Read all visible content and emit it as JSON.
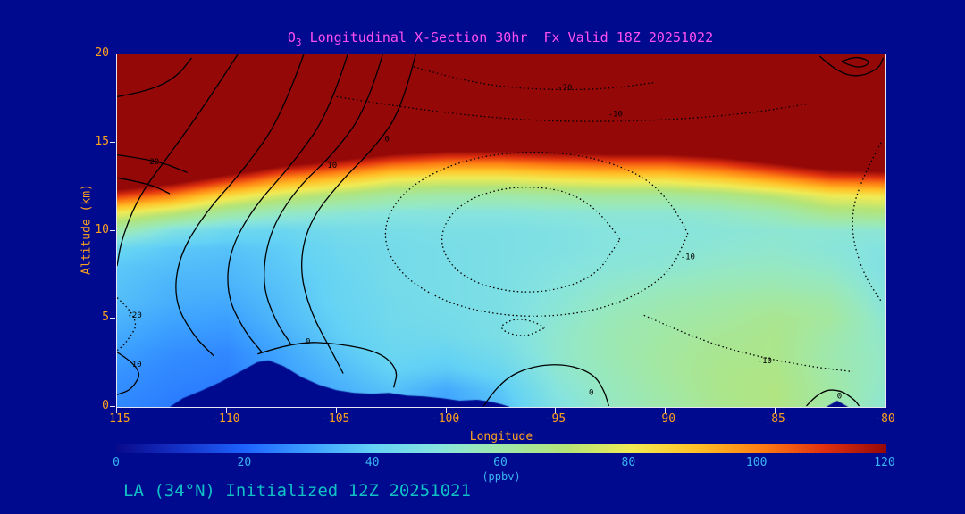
{
  "colors": {
    "background": "#000a8e",
    "title_text": "#ff4ff0",
    "axis_text": "#ffa21e",
    "frame": "#e6e6f0",
    "colorbar_text": "#3ab4f2",
    "footer_text": "#0fc0c5",
    "contour_line": "#000000"
  },
  "title": {
    "prefix": "O",
    "sub": "3",
    "rest": " Longitudinal X-Section 30hr  Fx Valid 18Z 20251022"
  },
  "footer": {
    "text": "LA (34°N) Initialized 12Z 20251021"
  },
  "chart_data": {
    "type": "heatmap",
    "title": "O3 Longitudinal X-Section 30hr  Fx Valid 18Z 20251022",
    "xlabel": "Longitude",
    "ylabel": "Altitude (km)",
    "units": "ppbv",
    "x_ticks": [
      -115,
      -110,
      -105,
      -100,
      -95,
      -90,
      -85,
      -80
    ],
    "y_ticks": [
      0,
      5,
      10,
      15,
      20
    ],
    "xlim": [
      -115,
      -80
    ],
    "ylim": [
      0,
      20
    ],
    "colorbar": {
      "units": "(ppbv)",
      "ticks": [
        0,
        20,
        40,
        60,
        80,
        100,
        120
      ],
      "range": [
        0,
        120
      ]
    },
    "grid": {
      "lons": [
        -115,
        -112.5,
        -110,
        -107.5,
        -105,
        -102.5,
        -100,
        -97.5,
        -95,
        -92.5,
        -90,
        -87.5,
        -85,
        -82.5,
        -80
      ],
      "alts": [
        0,
        1,
        2,
        3,
        4,
        5,
        6,
        7,
        8,
        9,
        10,
        11,
        12,
        13,
        14,
        15,
        16,
        17,
        18,
        19,
        20
      ],
      "values": [
        [
          26,
          24,
          22,
          28,
          32,
          36,
          30,
          36,
          48,
          55,
          60,
          65,
          68,
          60,
          52
        ],
        [
          27,
          25,
          24,
          28,
          33,
          37,
          32,
          38,
          50,
          56,
          61,
          66,
          68,
          61,
          53
        ],
        [
          28,
          26,
          25,
          30,
          35,
          40,
          38,
          42,
          52,
          57,
          62,
          66,
          67,
          60,
          54
        ],
        [
          30,
          27,
          26,
          31,
          37,
          42,
          41,
          45,
          53,
          58,
          62,
          65,
          66,
          59,
          54
        ],
        [
          32,
          29,
          28,
          33,
          39,
          43,
          44,
          47,
          53,
          58,
          61,
          64,
          66,
          60,
          53
        ],
        [
          34,
          31,
          30,
          35,
          40,
          44,
          45,
          47,
          52,
          57,
          60,
          62,
          65,
          62,
          52
        ],
        [
          36,
          33,
          32,
          36,
          41,
          44,
          46,
          47,
          51,
          55,
          58,
          60,
          62,
          60,
          50
        ],
        [
          37,
          34,
          34,
          37,
          41,
          45,
          46,
          47,
          50,
          53,
          55,
          57,
          58,
          56,
          49
        ],
        [
          38,
          36,
          35,
          38,
          42,
          45,
          46,
          47,
          49,
          51,
          52,
          54,
          55,
          53,
          48
        ],
        [
          42,
          38,
          37,
          39,
          43,
          45,
          46,
          47,
          48,
          50,
          51,
          52,
          53,
          51,
          49
        ],
        [
          60,
          48,
          43,
          42,
          45,
          46,
          47,
          47,
          48,
          50,
          50,
          51,
          52,
          52,
          52
        ],
        [
          80,
          72,
          62,
          55,
          52,
          50,
          50,
          50,
          51,
          52,
          52,
          54,
          58,
          66,
          68
        ],
        [
          110,
          100,
          85,
          75,
          68,
          62,
          60,
          60,
          62,
          63,
          63,
          66,
          72,
          80,
          82
        ],
        [
          140,
          130,
          115,
          100,
          92,
          83,
          80,
          80,
          83,
          85,
          85,
          90,
          98,
          108,
          110
        ],
        [
          175,
          160,
          145,
          130,
          120,
          110,
          105,
          105,
          108,
          110,
          110,
          115,
          125,
          135,
          138
        ],
        [
          205,
          190,
          175,
          160,
          150,
          140,
          135,
          135,
          138,
          140,
          140,
          145,
          152,
          162,
          165
        ],
        [
          230,
          218,
          205,
          192,
          182,
          175,
          170,
          170,
          172,
          175,
          175,
          178,
          185,
          192,
          195
        ],
        [
          250,
          240,
          228,
          215,
          205,
          198,
          192,
          192,
          194,
          196,
          198,
          202,
          208,
          212,
          215
        ],
        [
          260,
          255,
          248,
          240,
          232,
          228,
          224,
          224,
          226,
          228,
          230,
          233,
          237,
          240,
          242
        ],
        [
          265,
          262,
          258,
          252,
          248,
          245,
          242,
          242,
          244,
          245,
          246,
          248,
          250,
          252,
          254
        ],
        [
          270,
          268,
          265,
          260,
          256,
          254,
          252,
          252,
          253,
          254,
          255,
          256,
          258,
          260,
          262
        ]
      ]
    },
    "colormap": [
      [
        0,
        10,
        10,
        140
      ],
      [
        10,
        20,
        50,
        200
      ],
      [
        20,
        30,
        100,
        255
      ],
      [
        30,
        60,
        160,
        255
      ],
      [
        40,
        100,
        210,
        245
      ],
      [
        50,
        135,
        228,
        222
      ],
      [
        55,
        150,
        232,
        195
      ],
      [
        60,
        160,
        232,
        170
      ],
      [
        70,
        180,
        228,
        120
      ],
      [
        80,
        240,
        235,
        85
      ],
      [
        90,
        255,
        195,
        40
      ],
      [
        100,
        255,
        130,
        20
      ],
      [
        110,
        225,
        50,
        15
      ],
      [
        120,
        148,
        8,
        8
      ]
    ],
    "terrain": [
      [
        [
          -112.6,
          0
        ],
        [
          -112.0,
          0.5
        ],
        [
          -111.2,
          0.9
        ],
        [
          -110.3,
          1.4
        ],
        [
          -109.4,
          2.0
        ],
        [
          -108.6,
          2.55
        ],
        [
          -108.1,
          2.65
        ],
        [
          -107.4,
          2.3
        ],
        [
          -106.6,
          1.7
        ],
        [
          -105.8,
          1.25
        ],
        [
          -105.0,
          0.95
        ],
        [
          -104.2,
          0.8
        ],
        [
          -103.4,
          0.75
        ],
        [
          -102.6,
          0.8
        ],
        [
          -101.8,
          0.65
        ],
        [
          -101.0,
          0.6
        ],
        [
          -100.2,
          0.5
        ],
        [
          -99.4,
          0.35
        ],
        [
          -98.6,
          0.4
        ],
        [
          -98.0,
          0.3
        ],
        [
          -97.5,
          0.15
        ],
        [
          -97.1,
          0.0
        ]
      ],
      [
        [
          -82.7,
          0
        ],
        [
          -82.2,
          0.35
        ],
        [
          -81.7,
          0
        ]
      ]
    ],
    "contours": [
      {
        "style": "solid",
        "points": [
          [
            -109.5,
            20
          ],
          [
            -110.8,
            17.5
          ],
          [
            -112.5,
            14.5
          ],
          [
            -114,
            12
          ],
          [
            -114.8,
            9.5
          ],
          [
            -115,
            8
          ]
        ]
      },
      {
        "style": "solid",
        "points": [
          [
            -106.5,
            20
          ],
          [
            -107.5,
            16.5
          ],
          [
            -109.2,
            13.5
          ],
          [
            -111,
            11
          ],
          [
            -112.2,
            8.5
          ],
          [
            -112.4,
            6
          ],
          [
            -111.5,
            4
          ],
          [
            -110.6,
            2.9
          ]
        ]
      },
      {
        "style": "solid",
        "points": [
          [
            -104.5,
            20
          ],
          [
            -105.3,
            16.8
          ],
          [
            -107,
            13.8
          ],
          [
            -108.8,
            11.3
          ],
          [
            -109.9,
            8.8
          ],
          [
            -110,
            6.3
          ],
          [
            -109.2,
            4.3
          ],
          [
            -108.4,
            3.1
          ]
        ]
      },
      {
        "style": "solid",
        "points": [
          [
            -102.9,
            20
          ],
          [
            -103.6,
            17
          ],
          [
            -105.1,
            14.4
          ],
          [
            -106.9,
            12.3
          ],
          [
            -108.1,
            9.8
          ],
          [
            -108.4,
            7
          ],
          [
            -107.8,
            4.9
          ],
          [
            -107.1,
            3.6
          ]
        ]
      },
      {
        "style": "solid",
        "points": [
          [
            -101.4,
            20
          ],
          [
            -102,
            17
          ],
          [
            -103.2,
            14.8
          ],
          [
            -104.9,
            12.7
          ],
          [
            -106.3,
            10.4
          ],
          [
            -106.7,
            7.9
          ],
          [
            -106.2,
            5.4
          ],
          [
            -105.2,
            3.1
          ],
          [
            -104.7,
            1.9
          ]
        ]
      },
      {
        "style": "solid",
        "points": [
          [
            -115,
            17.6
          ],
          [
            -113.6,
            17.9
          ],
          [
            -112.3,
            18.7
          ],
          [
            -111.6,
            19.8
          ]
        ]
      },
      {
        "style": "solid",
        "points": [
          [
            -115,
            14.3
          ],
          [
            -113.2,
            14.0
          ],
          [
            -111.8,
            13.3
          ]
        ]
      },
      {
        "style": "solid",
        "points": [
          [
            -115,
            13.0
          ],
          [
            -113.6,
            12.7
          ],
          [
            -112.6,
            12.1
          ]
        ]
      },
      {
        "style": "solid",
        "points": [
          [
            -115,
            3.1
          ],
          [
            -113.8,
            2.2
          ],
          [
            -114.3,
            1.0
          ],
          [
            -115,
            0.7
          ]
        ]
      },
      {
        "style": "solid",
        "points": [
          [
            -108.6,
            3.0
          ],
          [
            -106.9,
            3.7
          ],
          [
            -104.9,
            3.6
          ],
          [
            -103.0,
            3.1
          ],
          [
            -102.2,
            2.1
          ],
          [
            -102.4,
            1.1
          ]
        ]
      },
      {
        "style": "solid",
        "points": [
          [
            -98.3,
            0.05
          ],
          [
            -97.6,
            1.4
          ],
          [
            -96.2,
            2.3
          ],
          [
            -94.6,
            2.45
          ],
          [
            -93.3,
            1.9
          ],
          [
            -92.8,
            0.9
          ],
          [
            -92.6,
            0.05
          ]
        ]
      },
      {
        "style": "solid",
        "points": [
          [
            -83.6,
            0.05
          ],
          [
            -83.0,
            0.9
          ],
          [
            -82.1,
            1.0
          ],
          [
            -81.4,
            0.4
          ],
          [
            -81.2,
            0.05
          ]
        ]
      },
      {
        "style": "solid",
        "points": [
          [
            -83.0,
            19.9
          ],
          [
            -82.2,
            19.0
          ],
          [
            -81.2,
            18.7
          ],
          [
            -80.3,
            19.2
          ],
          [
            -80.1,
            19.8
          ]
        ]
      },
      {
        "style": "solid",
        "points": [
          [
            -82.0,
            19.6
          ],
          [
            -81.3,
            19.15
          ],
          [
            -80.6,
            19.55
          ],
          [
            -81.3,
            19.9
          ],
          [
            -82.0,
            19.6
          ]
        ]
      },
      {
        "style": "dotted",
        "points": [
          [
            -101.5,
            19.3
          ],
          [
            -99,
            18.4
          ],
          [
            -96,
            18.0
          ],
          [
            -93,
            18.0
          ],
          [
            -90.5,
            18.4
          ]
        ]
      },
      {
        "style": "dotted",
        "points": [
          [
            -105,
            17.6
          ],
          [
            -101,
            16.8
          ],
          [
            -96,
            16.2
          ],
          [
            -91,
            16.2
          ],
          [
            -86.5,
            16.6
          ],
          [
            -83.5,
            17.2
          ]
        ]
      },
      {
        "style": "dotted",
        "points": [
          [
            -89,
            9.8
          ],
          [
            -89.9,
            12.2
          ],
          [
            -92.5,
            14.0
          ],
          [
            -96,
            14.6
          ],
          [
            -99.5,
            14.0
          ],
          [
            -102.1,
            12.2
          ],
          [
            -103,
            9.8
          ],
          [
            -102.1,
            7.4
          ],
          [
            -99.5,
            5.6
          ],
          [
            -96,
            5.0
          ],
          [
            -92.5,
            5.6
          ],
          [
            -89.9,
            7.4
          ],
          [
            -89,
            9.8
          ]
        ]
      },
      {
        "style": "dotted",
        "points": [
          [
            -92.1,
            9.5
          ],
          [
            -93.3,
            11.8
          ],
          [
            -96.3,
            12.7
          ],
          [
            -99.3,
            11.8
          ],
          [
            -100.5,
            9.5
          ],
          [
            -99.3,
            7.2
          ],
          [
            -96.3,
            6.3
          ],
          [
            -93.3,
            7.2
          ],
          [
            -92.1,
            9.5
          ]
        ]
      },
      {
        "style": "dotted",
        "points": [
          [
            -91,
            5.2
          ],
          [
            -88.5,
            3.8
          ],
          [
            -86,
            2.9
          ],
          [
            -83.5,
            2.3
          ],
          [
            -81.5,
            2.0
          ]
        ]
      },
      {
        "style": "dotted",
        "points": [
          [
            -80.2,
            15.0
          ],
          [
            -81.3,
            12.5
          ],
          [
            -81.6,
            10
          ],
          [
            -81.0,
            7.5
          ],
          [
            -80.2,
            6.0
          ]
        ]
      },
      {
        "style": "dotted",
        "points": [
          [
            -95.5,
            4.5
          ],
          [
            -96.5,
            5.2
          ],
          [
            -97.8,
            4.5
          ],
          [
            -96.5,
            3.9
          ],
          [
            -95.5,
            4.5
          ]
        ]
      },
      {
        "style": "dotted",
        "points": [
          [
            -115,
            6.2
          ],
          [
            -113.9,
            5.0
          ],
          [
            -114.6,
            3.6
          ],
          [
            -115,
            3.2
          ]
        ]
      }
    ],
    "contour_labels": [
      {
        "text": "20",
        "lon": -113.3,
        "alt": 13.9
      },
      {
        "text": "10",
        "lon": -105.2,
        "alt": 13.7
      },
      {
        "text": "0",
        "lon": -102.7,
        "alt": 15.2
      },
      {
        "text": "-70",
        "lon": -94.6,
        "alt": 18.1
      },
      {
        "text": "-10",
        "lon": -92.3,
        "alt": 16.6
      },
      {
        "text": "-10",
        "lon": -89.0,
        "alt": 8.5
      },
      {
        "text": "-10",
        "lon": -85.5,
        "alt": 2.6
      },
      {
        "text": "-20",
        "lon": -114.2,
        "alt": 5.2
      },
      {
        "text": "10",
        "lon": -114.1,
        "alt": 2.4
      },
      {
        "text": "0",
        "lon": -106.3,
        "alt": 3.7
      },
      {
        "text": "0",
        "lon": -93.4,
        "alt": 0.8
      },
      {
        "text": "0",
        "lon": -82.1,
        "alt": 0.6
      }
    ]
  }
}
